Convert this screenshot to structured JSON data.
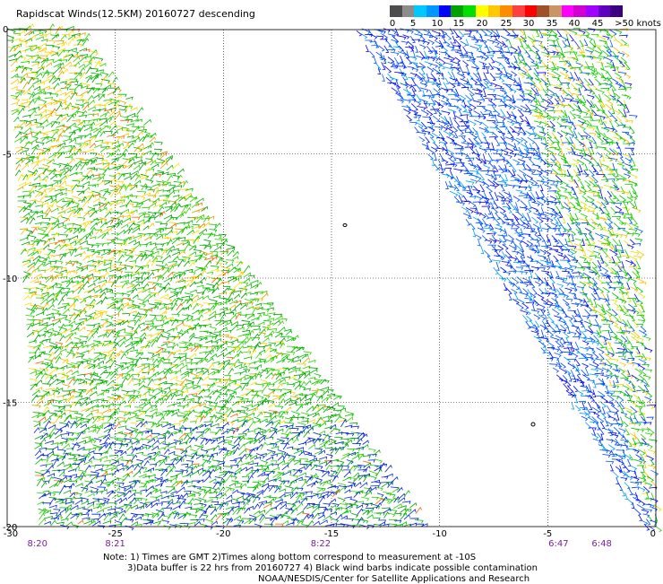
{
  "title": "Rapidscat Winds(12.5KM) 20160727 descending",
  "legend": {
    "labels": [
      "0",
      "5",
      "10",
      "15",
      "20",
      "25",
      "30",
      "35",
      "40",
      "45",
      ">50 knots"
    ],
    "colors": [
      "#4d4d4d",
      "#8c8c8c",
      "#00c8ff",
      "#0096ff",
      "#0000ff",
      "#00a000",
      "#00e000",
      "#ffff00",
      "#ffc800",
      "#ff8c00",
      "#ff4040",
      "#ff0000",
      "#a05028",
      "#c89664",
      "#ff00ff",
      "#d000d0",
      "#a000ff",
      "#6000c0",
      "#3a0080"
    ]
  },
  "chart_data": {
    "type": "map",
    "x_axis": {
      "range": [
        -30,
        0
      ],
      "ticks": [
        "-30",
        "-25",
        "-20",
        "-15",
        "-10",
        "-5",
        "0"
      ]
    },
    "y_axis": {
      "range": [
        -20,
        0
      ],
      "ticks": [
        "0",
        "-5",
        "-10",
        "-15",
        "-20"
      ]
    },
    "grid": true,
    "time_labels": [
      {
        "lon": -28.6,
        "text": "8:20"
      },
      {
        "lon": -25.0,
        "text": "8:21"
      },
      {
        "lon": -15.5,
        "text": "8:22"
      },
      {
        "lon": -4.5,
        "text": "6:47"
      },
      {
        "lon": -2.5,
        "text": "6:48"
      }
    ],
    "swaths": [
      {
        "name": "west",
        "top_lon": [
          -30,
          -26.8
        ],
        "bottom_lon": [
          -28.5,
          -10.7
        ],
        "lat_range": [
          0,
          -20
        ]
      },
      {
        "name": "east",
        "top_lon": [
          -13.8,
          -1.5
        ],
        "bottom_lon": [
          -0.5,
          0
        ],
        "lat_range": [
          0,
          -20
        ]
      }
    ]
  },
  "notes": [
    "Note: 1) Times are GMT 2)Times along bottom correspond to measurement at -10S",
    "3)Data buffer is 22 hrs from 20160727 4) Black wind barbs indicate possible contamination",
    "NOAA/NESDIS/Center for Satellite Applications and Research"
  ]
}
